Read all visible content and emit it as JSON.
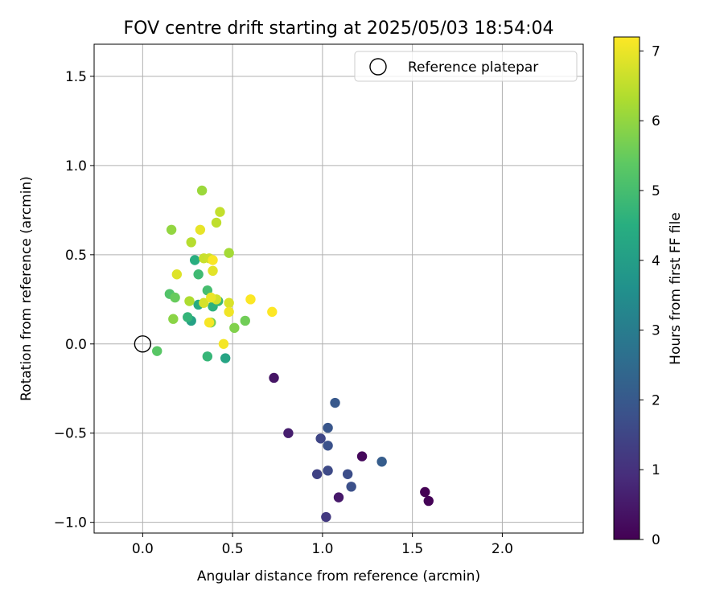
{
  "chart_data": {
    "type": "scatter",
    "title": "FOV centre drift starting at 2025/05/03 18:54:04",
    "xlabel": "Angular distance from reference (arcmin)",
    "ylabel": "Rotation from reference (arcmin)",
    "xlim": [
      -0.27,
      2.45
    ],
    "ylim": [
      -1.06,
      1.68
    ],
    "xticks": [
      0.0,
      0.5,
      1.0,
      1.5,
      2.0
    ],
    "xtick_labels": [
      "0.0",
      "0.5",
      "1.0",
      "1.5",
      "2.0"
    ],
    "yticks": [
      -1.0,
      -0.5,
      0.0,
      0.5,
      1.0,
      1.5
    ],
    "ytick_labels": [
      "−1.0",
      "−0.5",
      "0.0",
      "0.5",
      "1.0",
      "1.5"
    ],
    "grid": true,
    "legend": {
      "position": "top-right",
      "entries": [
        "Reference platepar"
      ]
    },
    "reference_point": {
      "x": 0.0,
      "y": 0.0
    },
    "colorbar": {
      "label": "Hours from first FF file",
      "colormap": "viridis",
      "range": [
        0,
        7.2
      ],
      "ticks": [
        0,
        1,
        2,
        3,
        4,
        5,
        6,
        7
      ],
      "tick_labels": [
        "0",
        "1",
        "2",
        "3",
        "4",
        "5",
        "6",
        "7"
      ]
    },
    "points": [
      {
        "x": 1.57,
        "y": -0.83,
        "hours": 0.0
      },
      {
        "x": 1.59,
        "y": -0.88,
        "hours": 0.05
      },
      {
        "x": 1.22,
        "y": -0.63,
        "hours": 0.15
      },
      {
        "x": 0.73,
        "y": -0.19,
        "hours": 0.4
      },
      {
        "x": 1.09,
        "y": -0.86,
        "hours": 0.5
      },
      {
        "x": 0.81,
        "y": -0.5,
        "hours": 0.6
      },
      {
        "x": 1.02,
        "y": -0.97,
        "hours": 1.2
      },
      {
        "x": 0.97,
        "y": -0.73,
        "hours": 1.4
      },
      {
        "x": 0.99,
        "y": -0.53,
        "hours": 1.5
      },
      {
        "x": 1.03,
        "y": -0.71,
        "hours": 1.6
      },
      {
        "x": 1.14,
        "y": -0.73,
        "hours": 1.7
      },
      {
        "x": 1.16,
        "y": -0.8,
        "hours": 1.75
      },
      {
        "x": 1.03,
        "y": -0.57,
        "hours": 1.8
      },
      {
        "x": 1.03,
        "y": -0.47,
        "hours": 1.9
      },
      {
        "x": 1.07,
        "y": -0.33,
        "hours": 2.0
      },
      {
        "x": 1.33,
        "y": -0.66,
        "hours": 2.1
      },
      {
        "x": 0.27,
        "y": 0.13,
        "hours": 4.1
      },
      {
        "x": 0.46,
        "y": -0.08,
        "hours": 4.2
      },
      {
        "x": 0.31,
        "y": 0.22,
        "hours": 4.4
      },
      {
        "x": 0.29,
        "y": 0.47,
        "hours": 4.5
      },
      {
        "x": 0.39,
        "y": 0.21,
        "hours": 4.6
      },
      {
        "x": 0.25,
        "y": 0.15,
        "hours": 4.7
      },
      {
        "x": 0.36,
        "y": -0.07,
        "hours": 4.75
      },
      {
        "x": 0.42,
        "y": 0.24,
        "hours": 4.8
      },
      {
        "x": 0.31,
        "y": 0.39,
        "hours": 4.9
      },
      {
        "x": 0.36,
        "y": 0.3,
        "hours": 5.0
      },
      {
        "x": 0.15,
        "y": 0.28,
        "hours": 5.2
      },
      {
        "x": 0.08,
        "y": -0.04,
        "hours": 5.3
      },
      {
        "x": 0.18,
        "y": 0.26,
        "hours": 5.5
      },
      {
        "x": 0.57,
        "y": 0.13,
        "hours": 5.6
      },
      {
        "x": 0.38,
        "y": 0.12,
        "hours": 5.7
      },
      {
        "x": 0.51,
        "y": 0.09,
        "hours": 5.8
      },
      {
        "x": 0.17,
        "y": 0.14,
        "hours": 5.9
      },
      {
        "x": 0.16,
        "y": 0.64,
        "hours": 6.0
      },
      {
        "x": 0.33,
        "y": 0.86,
        "hours": 6.1
      },
      {
        "x": 0.48,
        "y": 0.51,
        "hours": 6.2
      },
      {
        "x": 0.26,
        "y": 0.24,
        "hours": 6.3
      },
      {
        "x": 0.27,
        "y": 0.57,
        "hours": 6.4
      },
      {
        "x": 0.41,
        "y": 0.68,
        "hours": 6.5
      },
      {
        "x": 0.43,
        "y": 0.74,
        "hours": 6.55
      },
      {
        "x": 0.34,
        "y": 0.48,
        "hours": 6.6
      },
      {
        "x": 0.37,
        "y": 0.48,
        "hours": 6.65
      },
      {
        "x": 0.41,
        "y": 0.25,
        "hours": 6.7
      },
      {
        "x": 0.34,
        "y": 0.23,
        "hours": 6.75
      },
      {
        "x": 0.48,
        "y": 0.23,
        "hours": 6.8
      },
      {
        "x": 0.19,
        "y": 0.39,
        "hours": 6.85
      },
      {
        "x": 0.39,
        "y": 0.41,
        "hours": 6.9
      },
      {
        "x": 0.32,
        "y": 0.64,
        "hours": 6.95
      },
      {
        "x": 0.38,
        "y": 0.26,
        "hours": 7.0
      },
      {
        "x": 0.48,
        "y": 0.18,
        "hours": 7.05
      },
      {
        "x": 0.45,
        "y": 0.0,
        "hours": 7.1
      },
      {
        "x": 0.37,
        "y": 0.12,
        "hours": 7.12
      },
      {
        "x": 0.39,
        "y": 0.47,
        "hours": 7.15
      },
      {
        "x": 0.6,
        "y": 0.25,
        "hours": 7.18
      },
      {
        "x": 0.72,
        "y": 0.18,
        "hours": 7.2
      }
    ]
  }
}
